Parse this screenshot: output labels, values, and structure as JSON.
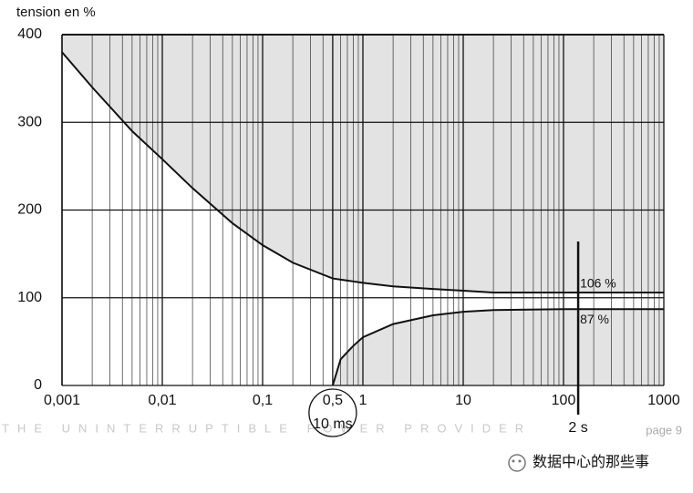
{
  "chart_data": {
    "type": "line",
    "y_label": "tension en %",
    "xlim": [
      0.001,
      1000
    ],
    "ylim": [
      0,
      400
    ],
    "log_x": true,
    "grid": true,
    "minor_grid": true,
    "xticks": [
      {
        "value": 0.001,
        "label": "0,001"
      },
      {
        "value": 0.01,
        "label": "0,01"
      },
      {
        "value": 0.1,
        "label": "0,1"
      },
      {
        "value": 0.5,
        "label": "0,5"
      },
      1,
      10,
      100,
      1000
    ],
    "yticks": [
      0,
      100,
      200,
      300,
      400
    ],
    "color": "#111111",
    "shade": "#e3e3e3",
    "series": [
      {
        "x": [
          0.001,
          0.002,
          0.005,
          0.01,
          0.02,
          0.05,
          0.1,
          0.2,
          0.5,
          1,
          2,
          5,
          10,
          20,
          100,
          1000
        ],
        "values": [
          380,
          340,
          290,
          258,
          225,
          185,
          160,
          140,
          122,
          117,
          113,
          110,
          108,
          106,
          106,
          106
        ],
        "shade": "above"
      },
      {
        "x": [
          0.5,
          0.6,
          0.8,
          1,
          2,
          5,
          10,
          20,
          100,
          1000
        ],
        "values": [
          0,
          30,
          45,
          55,
          70,
          80,
          84,
          86,
          87,
          87
        ],
        "shade": "below"
      }
    ],
    "annotations": [
      {
        "text": "106 %",
        "x": 140,
        "y": 106
      },
      {
        "text": "87 %",
        "x": 140,
        "y": 87
      },
      {
        "text": "2 s",
        "x": 140
      },
      {
        "text": "10 ms",
        "x": 0.5
      }
    ]
  },
  "footer": {
    "watermark": "THE UNINTERRUPTIBLE POWER PROVIDER",
    "page": "page 9",
    "brand": "数据中心的那些事"
  }
}
